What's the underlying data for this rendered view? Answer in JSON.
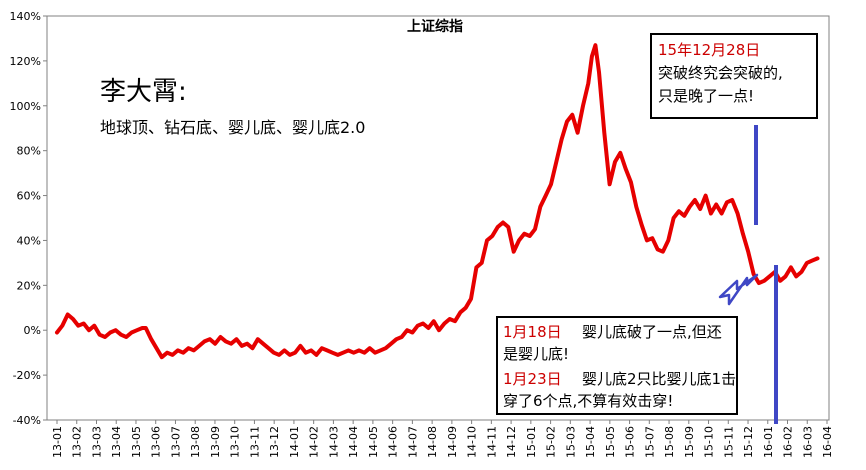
{
  "chart_data": {
    "type": "line",
    "title": "上证综指",
    "author": "李大霄:",
    "subtitle": "地球顶、钻石底、婴儿底、婴儿底2.0",
    "ylim": [
      -40,
      140
    ],
    "yticks": [
      "-40%",
      "-20%",
      "0%",
      "20%",
      "40%",
      "60%",
      "80%",
      "100%",
      "120%",
      "140%"
    ],
    "categories": [
      "13-01",
      "13-02",
      "13-03",
      "13-04",
      "13-05",
      "13-06",
      "13-07",
      "13-08",
      "13-09",
      "13-10",
      "13-11",
      "13-12",
      "14-01",
      "14-02",
      "14-03",
      "14-04",
      "14-05",
      "14-06",
      "14-07",
      "14-08",
      "14-09",
      "14-10",
      "14-11",
      "14-12",
      "15-01",
      "15-02",
      "15-03",
      "15-04",
      "15-05",
      "15-06",
      "15-07",
      "15-08",
      "15-09",
      "15-10",
      "15-11",
      "15-12",
      "16-01",
      "16-02",
      "16-03",
      "16-04"
    ],
    "series": [
      {
        "color": "#e60000",
        "points": [
          [
            0.0,
            -1
          ],
          [
            0.3,
            2
          ],
          [
            0.6,
            7
          ],
          [
            0.9,
            5
          ],
          [
            1.2,
            2
          ],
          [
            1.5,
            3
          ],
          [
            1.8,
            0
          ],
          [
            2.1,
            2
          ],
          [
            2.4,
            -2
          ],
          [
            2.7,
            -3
          ],
          [
            3.0,
            -1
          ],
          [
            3.3,
            0
          ],
          [
            3.6,
            -2
          ],
          [
            3.9,
            -3
          ],
          [
            4.2,
            -1
          ],
          [
            4.5,
            0
          ],
          [
            4.8,
            1
          ],
          [
            5.0,
            1
          ],
          [
            5.3,
            -4
          ],
          [
            5.6,
            -8
          ],
          [
            5.9,
            -12
          ],
          [
            6.2,
            -10
          ],
          [
            6.5,
            -11
          ],
          [
            6.8,
            -9
          ],
          [
            7.1,
            -10
          ],
          [
            7.4,
            -8
          ],
          [
            7.7,
            -9
          ],
          [
            8.0,
            -7
          ],
          [
            8.3,
            -5
          ],
          [
            8.6,
            -4
          ],
          [
            8.9,
            -6
          ],
          [
            9.2,
            -3
          ],
          [
            9.5,
            -5
          ],
          [
            9.8,
            -6
          ],
          [
            10.1,
            -4
          ],
          [
            10.4,
            -7
          ],
          [
            10.7,
            -6
          ],
          [
            11.0,
            -8
          ],
          [
            11.3,
            -4
          ],
          [
            11.6,
            -6
          ],
          [
            11.9,
            -8
          ],
          [
            12.2,
            -10
          ],
          [
            12.5,
            -11
          ],
          [
            12.8,
            -9
          ],
          [
            13.1,
            -11
          ],
          [
            13.4,
            -10
          ],
          [
            13.7,
            -7
          ],
          [
            14.0,
            -10
          ],
          [
            14.3,
            -9
          ],
          [
            14.6,
            -11
          ],
          [
            14.9,
            -8
          ],
          [
            15.2,
            -9
          ],
          [
            15.5,
            -10
          ],
          [
            15.8,
            -11
          ],
          [
            16.1,
            -10
          ],
          [
            16.4,
            -9
          ],
          [
            16.7,
            -10
          ],
          [
            17.0,
            -9
          ],
          [
            17.3,
            -10
          ],
          [
            17.6,
            -8
          ],
          [
            17.9,
            -10
          ],
          [
            18.2,
            -9
          ],
          [
            18.5,
            -8
          ],
          [
            18.8,
            -6
          ],
          [
            19.1,
            -4
          ],
          [
            19.4,
            -3
          ],
          [
            19.7,
            0
          ],
          [
            20.0,
            -1
          ],
          [
            20.3,
            2
          ],
          [
            20.6,
            3
          ],
          [
            20.9,
            1
          ],
          [
            21.2,
            4
          ],
          [
            21.5,
            0
          ],
          [
            21.8,
            3
          ],
          [
            22.1,
            5
          ],
          [
            22.4,
            4
          ],
          [
            22.7,
            8
          ],
          [
            23.0,
            10
          ],
          [
            23.3,
            14
          ],
          [
            23.6,
            28
          ],
          [
            23.9,
            30
          ],
          [
            24.2,
            40
          ],
          [
            24.5,
            42
          ],
          [
            24.8,
            46
          ],
          [
            25.1,
            48
          ],
          [
            25.4,
            46
          ],
          [
            25.7,
            35
          ],
          [
            26.0,
            40
          ],
          [
            26.3,
            43
          ],
          [
            26.6,
            42
          ],
          [
            26.9,
            45
          ],
          [
            27.2,
            55
          ],
          [
            27.5,
            60
          ],
          [
            27.8,
            65
          ],
          [
            28.1,
            75
          ],
          [
            28.4,
            85
          ],
          [
            28.7,
            93
          ],
          [
            29.0,
            96
          ],
          [
            29.3,
            88
          ],
          [
            29.6,
            100
          ],
          [
            29.9,
            110
          ],
          [
            30.1,
            122
          ],
          [
            30.3,
            127
          ],
          [
            30.5,
            115
          ],
          [
            30.8,
            88
          ],
          [
            31.1,
            65
          ],
          [
            31.4,
            75
          ],
          [
            31.7,
            79
          ],
          [
            32.0,
            72
          ],
          [
            32.3,
            66
          ],
          [
            32.6,
            55
          ],
          [
            32.9,
            47
          ],
          [
            33.2,
            40
          ],
          [
            33.5,
            41
          ],
          [
            33.8,
            36
          ],
          [
            34.1,
            35
          ],
          [
            34.4,
            40
          ],
          [
            34.7,
            50
          ],
          [
            35.0,
            53
          ],
          [
            35.3,
            51
          ],
          [
            35.6,
            55
          ],
          [
            35.9,
            58
          ],
          [
            36.2,
            54
          ],
          [
            36.5,
            60
          ],
          [
            36.8,
            52
          ],
          [
            37.1,
            56
          ],
          [
            37.4,
            52
          ],
          [
            37.7,
            57
          ],
          [
            38.0,
            58
          ],
          [
            38.3,
            52
          ],
          [
            38.6,
            43
          ],
          [
            38.9,
            35
          ],
          [
            39.2,
            25
          ],
          [
            39.5,
            21
          ],
          [
            39.8,
            22
          ],
          [
            40.1,
            24
          ],
          [
            40.4,
            26
          ],
          [
            40.7,
            22
          ],
          [
            41.0,
            24
          ],
          [
            41.3,
            28
          ],
          [
            41.6,
            24
          ],
          [
            41.9,
            26
          ],
          [
            42.2,
            30
          ],
          [
            42.5,
            31
          ],
          [
            42.8,
            32
          ]
        ]
      }
    ],
    "annotations": [
      {
        "date": "15年12月28日",
        "lines": [
          "突破终究会突破的,",
          "只是晚了一点!"
        ]
      },
      {
        "date1": "1月18日",
        "text1a": "婴儿底破了一点,但还",
        "text1b": "是婴儿底!",
        "date2": "1月23日",
        "text2a": "婴儿底2只比婴儿底1击",
        "text2b": "穿了6个点,不算有效击穿!"
      }
    ],
    "grid": false,
    "legend": "none"
  }
}
